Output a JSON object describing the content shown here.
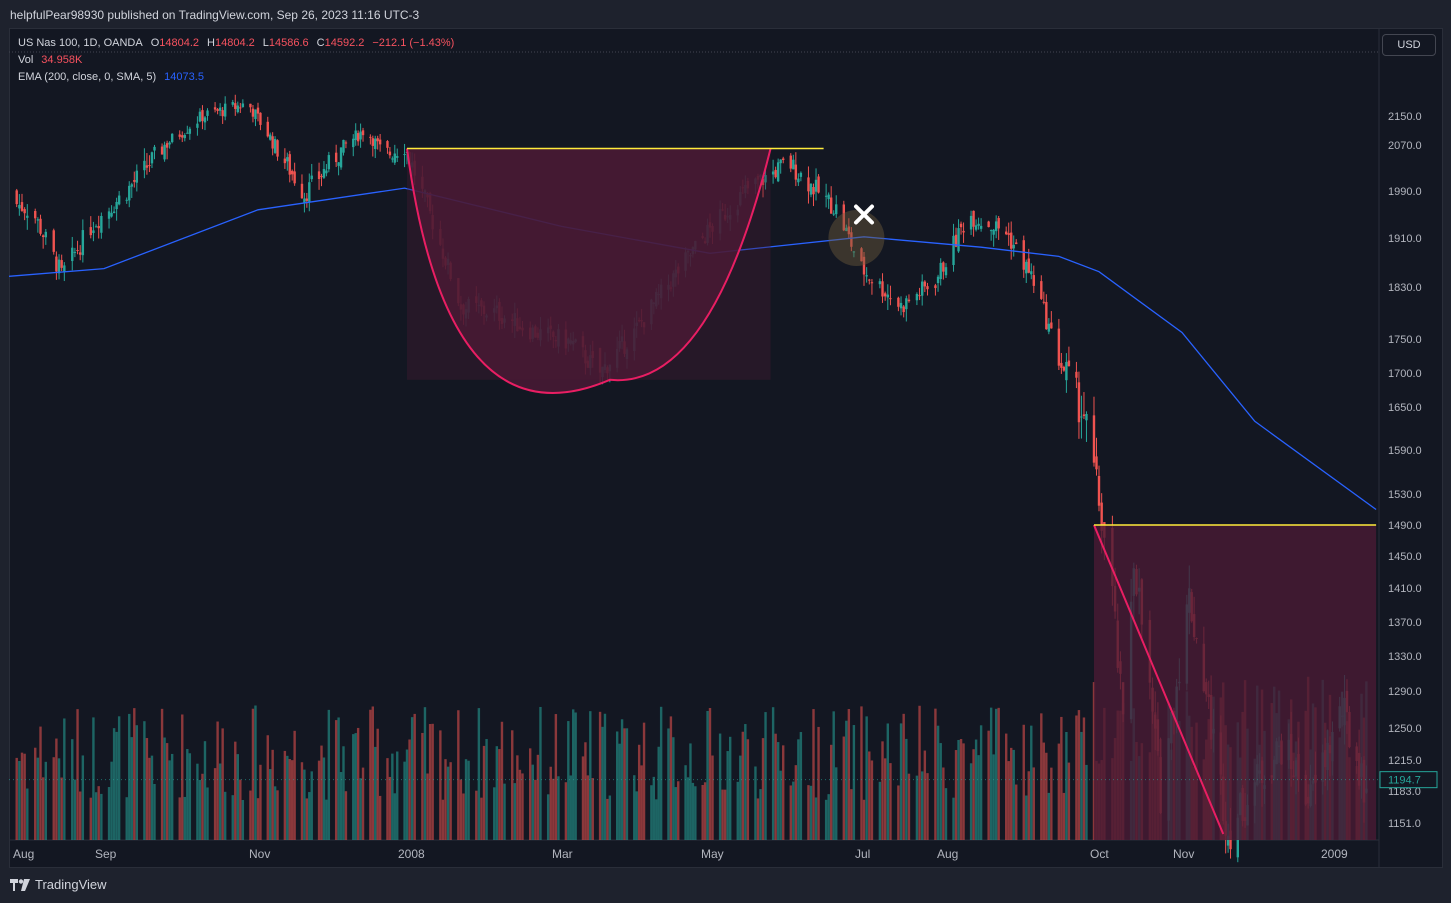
{
  "header": {
    "published": "helpfulPear98930 published on TradingView.com, Sep 26, 2023 11:16 UTC-3"
  },
  "legend": {
    "symbol": "US Nas 100, 1D, OANDA",
    "o_label": "O",
    "o_value": "14804.2",
    "h_label": "H",
    "h_value": "14804.2",
    "l_label": "L",
    "l_value": "14586.6",
    "c_label": "C",
    "c_value": "14592.2",
    "change": "−212.1 (−1.43%)",
    "vol_label": "Vol",
    "vol_value": "34.958K",
    "ema_label": "EMA (200, close, 0, SMA, 5)",
    "ema_value": "14073.5"
  },
  "currency": "USD",
  "footer": {
    "brand": "TradingView"
  },
  "colors": {
    "background": "#131722",
    "up": "#26a69a",
    "down": "#ef5350",
    "ema": "#2962ff",
    "level": "#ffeb3b",
    "pattern_fill": "#4a1a35",
    "pattern_line": "#e91e63",
    "price_tag": "#26a69a"
  },
  "chart_data": {
    "type": "candlestick",
    "y_axis_ticks": [
      2150.0,
      2070.0,
      1990.0,
      1910.0,
      1830.0,
      1750.0,
      1700.0,
      1650.0,
      1590.0,
      1530.0,
      1490.0,
      1450.0,
      1410.0,
      1370.0,
      1330.0,
      1290.0,
      1250.0,
      1215.0,
      1183.0,
      1151.0
    ],
    "y_axis_tick_labels": [
      "2150.0",
      "2070.0",
      "1990.0",
      "1910.0",
      "1830.0",
      "1750.0",
      "1700.0",
      "1650.0",
      "1590.0",
      "1530.0",
      "1490.0",
      "1450.0",
      "1410.0",
      "1370.0",
      "1330.0",
      "1290.0",
      "1250.0",
      "1215.0",
      "1183.0",
      "1151.0"
    ],
    "x_axis_labels": [
      "Aug",
      "Sep",
      "Nov",
      "2008",
      "Mar",
      "May",
      "Jul",
      "Aug",
      "Oct",
      "Nov",
      "2009"
    ],
    "x_axis_label_dates": [
      "2007-08-01",
      "2007-09-01",
      "2007-11-01",
      "2008-01-01",
      "2008-03-01",
      "2008-05-01",
      "2008-07-01",
      "2008-08-01",
      "2008-10-01",
      "2008-11-01",
      "2009-01-01"
    ],
    "last_price": "1194.7",
    "price_path": [
      [
        "2007-07-20",
        1990
      ],
      [
        "2007-08-05",
        1955
      ],
      [
        "2007-08-16",
        1850
      ],
      [
        "2007-08-28",
        1935
      ],
      [
        "2007-09-10",
        1990
      ],
      [
        "2007-09-25",
        2070
      ],
      [
        "2007-10-10",
        2150
      ],
      [
        "2007-10-28",
        2185
      ],
      [
        "2007-11-08",
        2070
      ],
      [
        "2007-11-20",
        1985
      ],
      [
        "2007-12-05",
        2060
      ],
      [
        "2007-12-15",
        2115
      ],
      [
        "2007-12-22",
        2050
      ],
      [
        "2007-12-31",
        2070
      ],
      [
        "2008-01-10",
        1950
      ],
      [
        "2008-01-22",
        1800
      ],
      [
        "2008-02-05",
        1790
      ],
      [
        "2008-02-20",
        1760
      ],
      [
        "2008-03-05",
        1745
      ],
      [
        "2008-03-17",
        1700
      ],
      [
        "2008-03-31",
        1760
      ],
      [
        "2008-04-15",
        1840
      ],
      [
        "2008-04-30",
        1920
      ],
      [
        "2008-05-15",
        1990
      ],
      [
        "2008-06-01",
        2040
      ],
      [
        "2008-06-10",
        2000
      ],
      [
        "2008-06-20",
        1960
      ],
      [
        "2008-06-30",
        1860
      ],
      [
        "2008-07-15",
        1800
      ],
      [
        "2008-07-28",
        1840
      ],
      [
        "2008-08-10",
        1950
      ],
      [
        "2008-08-25",
        1920
      ],
      [
        "2008-09-05",
        1840
      ],
      [
        "2008-09-15",
        1720
      ],
      [
        "2008-09-25",
        1640
      ],
      [
        "2008-10-01",
        1520
      ],
      [
        "2008-10-06",
        1400
      ],
      [
        "2008-10-10",
        1250
      ],
      [
        "2008-10-14",
        1450
      ],
      [
        "2008-10-24",
        1180
      ],
      [
        "2008-11-04",
        1400
      ],
      [
        "2008-11-20",
        1140
      ],
      [
        "2008-12-01",
        1190
      ],
      [
        "2008-12-12",
        1230
      ],
      [
        "2008-12-24",
        1175
      ],
      [
        "2009-01-06",
        1270
      ],
      [
        "2009-01-15",
        1190
      ],
      [
        "2009-01-20",
        1180
      ]
    ],
    "ema_200": [
      [
        "2007-07-20",
        1845
      ],
      [
        "2007-09-01",
        1860
      ],
      [
        "2007-11-01",
        1958
      ],
      [
        "2007-12-31",
        1995
      ],
      [
        "2008-03-01",
        1930
      ],
      [
        "2008-05-01",
        1885
      ],
      [
        "2008-07-01",
        1912
      ],
      [
        "2008-08-15",
        1895
      ],
      [
        "2008-09-15",
        1880
      ],
      [
        "2008-10-01",
        1855
      ],
      [
        "2008-11-01",
        1760
      ],
      [
        "2008-12-01",
        1630
      ],
      [
        "2009-01-20",
        1510
      ]
    ],
    "volume_range": [
      0,
      1
    ],
    "annotations": {
      "resistance_line_1": {
        "from": [
          "2008-01-01",
          2064
        ],
        "to": [
          "2008-06-15",
          2064
        ]
      },
      "cup_bottom": [
        "2008-03-21",
        1690
      ],
      "cup_right": [
        "2008-05-25",
        2064
      ],
      "marker_x": [
        "2008-07-01",
        1950
      ],
      "highlight_circle": [
        "2008-06-28",
        1910
      ],
      "resistance_line_2": {
        "from": [
          "2008-09-29",
          1490
        ],
        "to": [
          "2009-01-20",
          1490
        ]
      },
      "drop_to": [
        "2008-11-18",
        1140
      ]
    }
  }
}
